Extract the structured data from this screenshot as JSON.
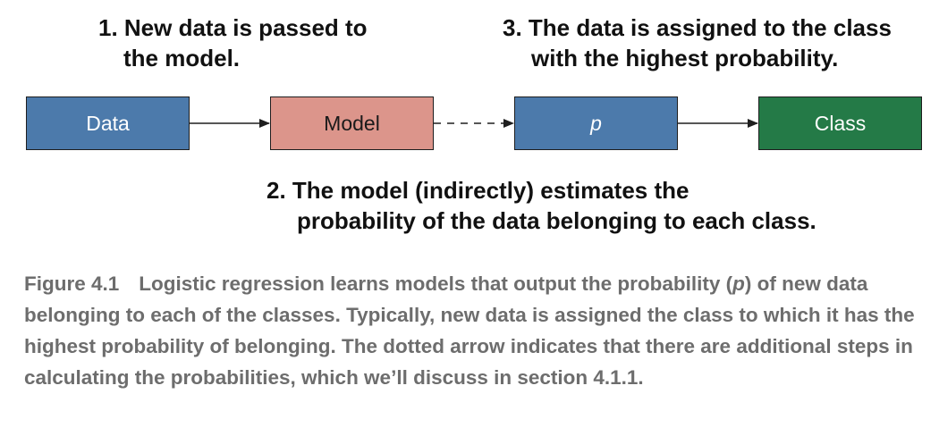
{
  "annotations": {
    "step1": [
      "1. New data is passed to",
      "the model."
    ],
    "step2": [
      "2. The model (indirectly) estimates the",
      "probability of the data belonging to each class."
    ],
    "step3": [
      "3. The data is assigned to the class",
      "with the highest probability."
    ]
  },
  "nodes": [
    {
      "id": "data",
      "label": "Data",
      "fill": "#4c7aab",
      "text_color": "#ffffff"
    },
    {
      "id": "model",
      "label": "Model",
      "fill": "#dc958b",
      "text_color": "#1a1a1a"
    },
    {
      "id": "p",
      "label": "p",
      "fill": "#4c7aab",
      "text_color": "#ffffff"
    },
    {
      "id": "class",
      "label": "Class",
      "fill": "#247a47",
      "text_color": "#ffffff"
    }
  ],
  "edges": [
    {
      "from": "data",
      "to": "model",
      "style": "solid"
    },
    {
      "from": "model",
      "to": "p",
      "style": "dashed"
    },
    {
      "from": "p",
      "to": "class",
      "style": "solid"
    }
  ],
  "caption": {
    "label": "Figure 4.1",
    "part1": "Logistic regression learns models that output the probability (",
    "p_symbol": "p",
    "part2": ") of new data belonging to each of the classes. Typically, new data is assigned the class to which it has the highest probability of belonging. The dotted arrow indicates that there are additional steps in calculating the probabilities, which we’ll discuss in section 4.1.1.",
    "color": "#6d6d6d"
  }
}
